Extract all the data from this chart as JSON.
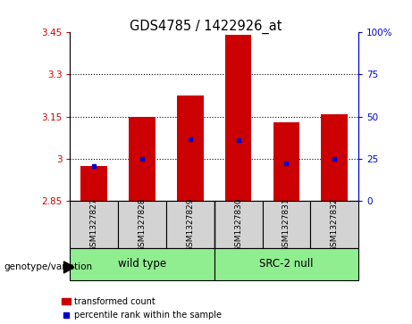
{
  "title": "GDS4785 / 1422926_at",
  "samples": [
    "GSM1327827",
    "GSM1327828",
    "GSM1327829",
    "GSM1327830",
    "GSM1327831",
    "GSM1327832"
  ],
  "bar_values": [
    2.975,
    3.148,
    3.225,
    3.44,
    3.13,
    3.16
  ],
  "bar_base": 2.85,
  "percentile_values": [
    2.975,
    3.0,
    3.07,
    3.065,
    2.985,
    3.0
  ],
  "bar_color": "#cc0000",
  "percentile_color": "#0000cc",
  "ylim_left": [
    2.85,
    3.45
  ],
  "yticks_left": [
    2.85,
    3.0,
    3.15,
    3.3,
    3.45
  ],
  "ytick_labels_left": [
    "2.85",
    "3",
    "3.15",
    "3.3",
    "3.45"
  ],
  "ylim_right": [
    0,
    100
  ],
  "yticks_right": [
    0,
    25,
    50,
    75,
    100
  ],
  "ytick_labels_right": [
    "0",
    "25",
    "50",
    "75",
    "100%"
  ],
  "groups": [
    {
      "label": "wild type",
      "samples_idx": [
        0,
        1,
        2
      ],
      "color": "#90ee90"
    },
    {
      "label": "SRC-2 null",
      "samples_idx": [
        3,
        4,
        5
      ],
      "color": "#90ee90"
    }
  ],
  "group_label": "genotype/variation",
  "legend_items": [
    {
      "label": "transformed count",
      "color": "#cc0000"
    },
    {
      "label": "percentile rank within the sample",
      "color": "#0000cc"
    }
  ],
  "bar_width": 0.55,
  "sample_box_color": "#d3d3d3",
  "left_tick_color": "#cc0000",
  "right_tick_color": "#0000cc",
  "grid_lines": [
    3.0,
    3.15,
    3.3
  ]
}
